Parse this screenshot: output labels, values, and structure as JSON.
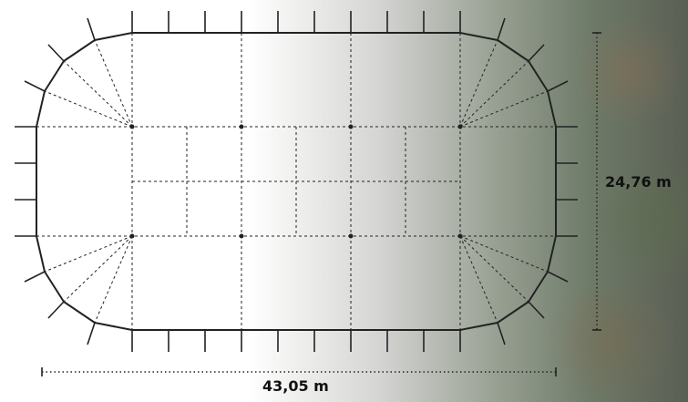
{
  "dimensions": {
    "width_label": "43,05 m",
    "height_label": "24,76 m"
  },
  "colors": {
    "outline": "#222222",
    "dashed": "#222222",
    "dimension": "#222222"
  }
}
